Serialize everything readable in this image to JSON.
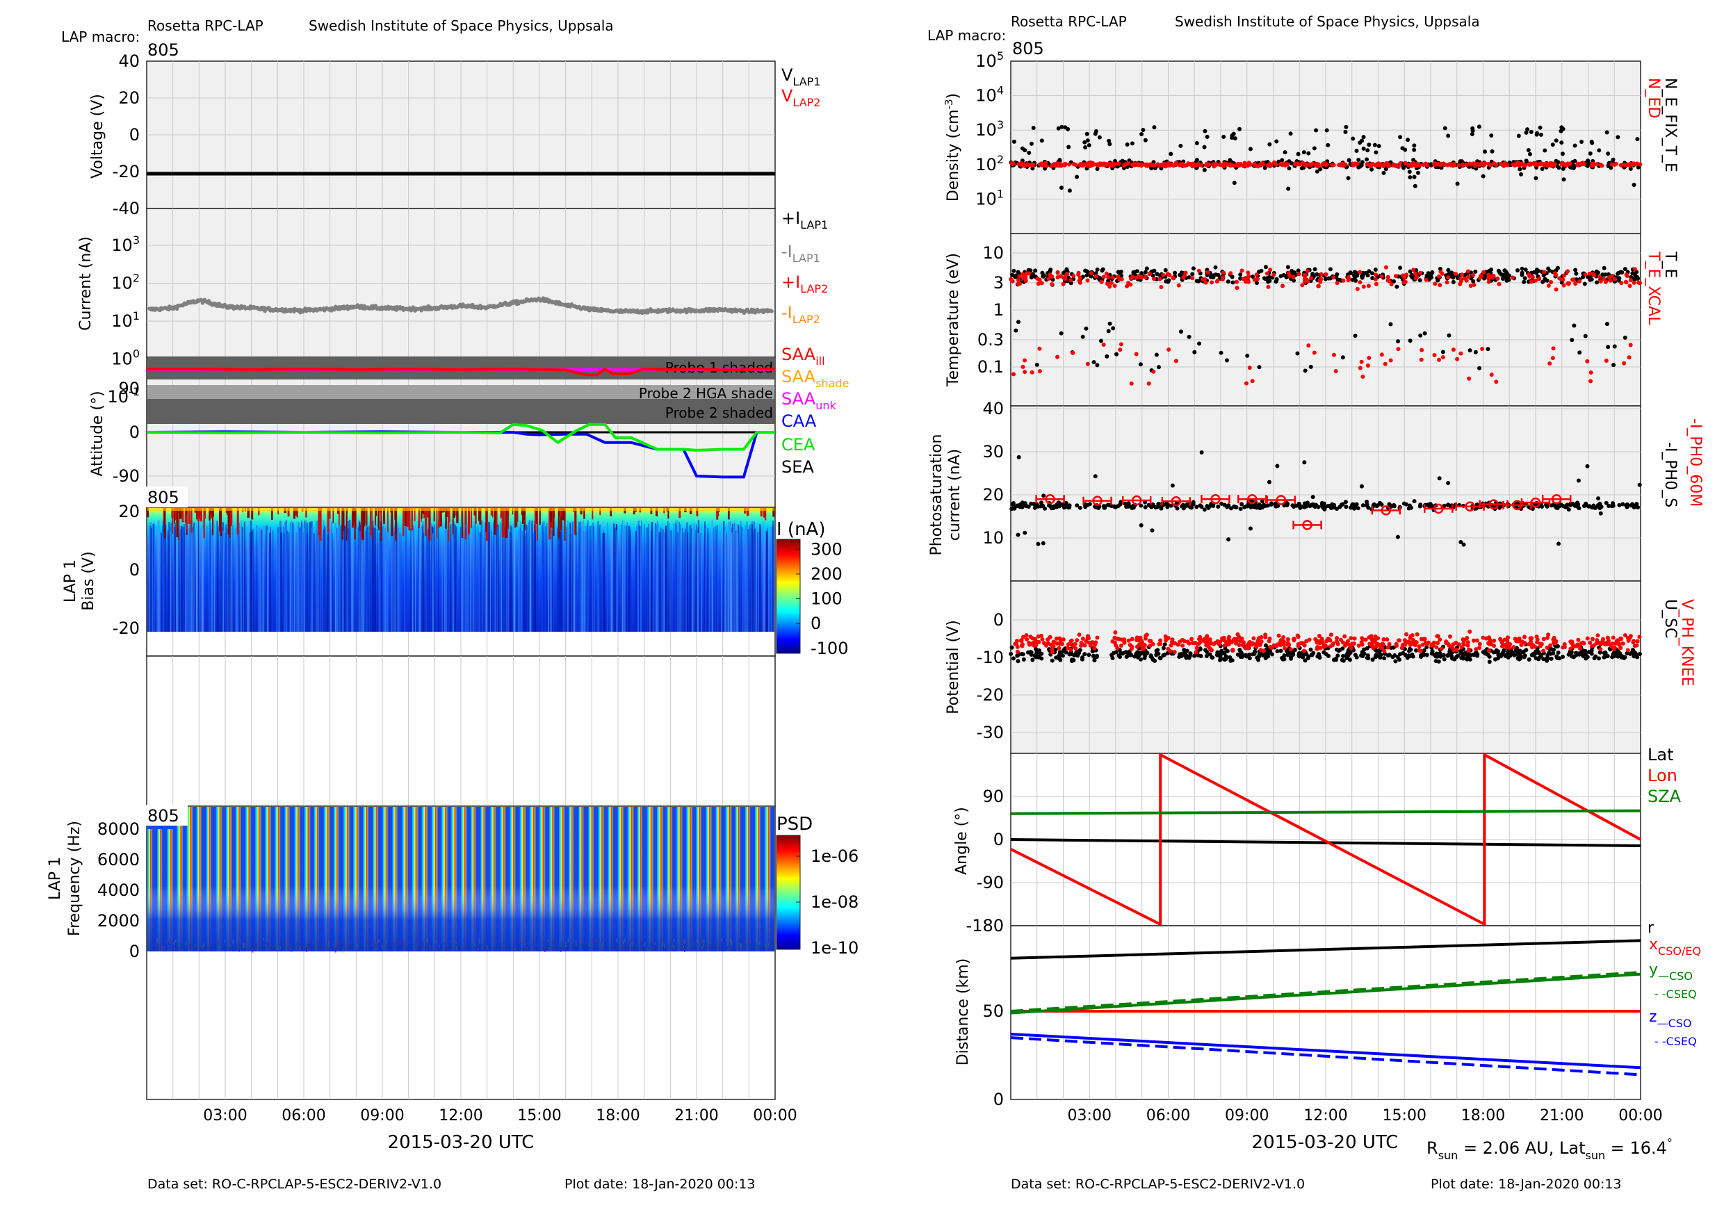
{
  "left": {
    "header": {
      "institute_name": "Rosetta RPC-LAP",
      "institute_location": "Swedish Institute of Space Physics, Uppsala",
      "macro_label": "LAP macro:",
      "macro_value": "805"
    },
    "xaxis": {
      "ticks": [
        "03:00",
        "06:00",
        "09:00",
        "12:00",
        "15:00",
        "18:00",
        "21:00",
        "00:00"
      ],
      "label": "2015-03-20 UTC"
    },
    "footer": {
      "dataset": "Data set: RO-C-RPCLAP-5-ESC2-DERIV2-V1.0",
      "plotdate": "Plot date: 18-Jan-2020 00:13"
    }
  },
  "right": {
    "header": {
      "institute_name": "Rosetta RPC-LAP",
      "institute_location": "Swedish Institute of Space Physics, Uppsala",
      "macro_label": "LAP macro:",
      "macro_value": "805"
    },
    "xaxis": {
      "ticks": [
        "03:00",
        "06:00",
        "09:00",
        "12:00",
        "15:00",
        "18:00",
        "21:00",
        "00:00"
      ],
      "label": "2015-03-20 UTC"
    },
    "footer": {
      "dataset": "Data set: RO-C-RPCLAP-5-ESC2-DERIV2-V1.0",
      "plotdate": "Plot date: 18-Jan-2020 00:13"
    },
    "rsun": "R",
    "rsun_sub": "sun",
    "rsun_value": " = 2.06 AU, Lat",
    "lat_sub": "sun",
    "lat_value": " = 16.4",
    "deg": "°"
  },
  "chart_data": [
    {
      "id": "voltage",
      "type": "line",
      "ylabel": "Voltage (V)",
      "yticks": [
        "40",
        "20",
        "0",
        "-20",
        "-40"
      ],
      "ylim": [
        -40,
        40
      ],
      "series": [
        {
          "name": "V",
          "sub": "LAP1",
          "color": "#000000",
          "x": [
            0,
            24
          ],
          "y": [
            -20,
            -20
          ]
        },
        {
          "name": "V",
          "sub": "LAP2",
          "color": "#ff0000",
          "x": [],
          "y": []
        }
      ]
    },
    {
      "id": "current",
      "type": "scatter",
      "ylabel": "Current (nA)",
      "yscale": "log",
      "yticks": [
        "10^3",
        "10^2",
        "10^1",
        "10^0",
        "10^-1"
      ],
      "series": [
        {
          "name": "+I",
          "sub": "LAP1",
          "color": "#000000"
        },
        {
          "name": "-I",
          "sub": "LAP1",
          "color": "#808080",
          "x": [
            0,
            1,
            2,
            3,
            4,
            5,
            6,
            7,
            8,
            9,
            10,
            11,
            12,
            13,
            14,
            15,
            16,
            17,
            18,
            19,
            20,
            21,
            22,
            23,
            24
          ],
          "y": [
            20,
            22,
            35,
            24,
            22,
            20,
            19,
            21,
            24,
            22,
            21,
            22,
            25,
            23,
            30,
            38,
            26,
            20,
            18,
            18,
            19,
            19,
            20,
            18,
            19
          ]
        },
        {
          "name": "+I",
          "sub": "LAP2",
          "color": "#ff0000"
        },
        {
          "name": "-I",
          "sub": "LAP2",
          "color": "#ff8c00"
        }
      ]
    },
    {
      "id": "attitude",
      "type": "line",
      "ylabel": "Attitude (°)",
      "yticks": [
        "90",
        "0",
        "-90"
      ],
      "shades": [
        "Probe 1 shaded",
        "Probe 2 HGA shade",
        "Probe 2 shaded"
      ],
      "series": [
        {
          "name": "SAA",
          "sub": "ill",
          "color": "#ff0000",
          "x": [
            0,
            2,
            4,
            6,
            8,
            10,
            12,
            14,
            16,
            16.8,
            17.2,
            17.5,
            17.8,
            18.4,
            19,
            20,
            21,
            22,
            22.8,
            23.3,
            24
          ],
          "y": [
            130,
            130,
            129,
            130,
            129,
            130,
            129,
            130,
            128,
            118,
            118,
            130,
            120,
            120,
            130,
            129,
            130,
            128,
            128,
            130,
            130
          ]
        },
        {
          "name": "SAA",
          "sub": "shade",
          "color": "#ffa500"
        },
        {
          "name": "SAA",
          "sub": "unk",
          "color": "#ff00ff",
          "x": [
            0,
            24
          ],
          "y": [
            130,
            130
          ]
        },
        {
          "name": "CAA",
          "color": "#0000ff",
          "x": [
            0,
            3,
            6,
            9,
            12,
            13.3,
            14,
            14.5,
            15,
            16,
            16.8,
            17.5,
            18,
            18.5,
            19.5,
            20.5,
            21,
            22,
            22.8,
            23.3,
            24
          ],
          "y": [
            0,
            1,
            0,
            1,
            0,
            0,
            0,
            -4,
            -5,
            -4,
            -4,
            -21,
            -21,
            -21,
            -35,
            -35,
            -90,
            -92,
            -92,
            0,
            0
          ]
        },
        {
          "name": "CEA",
          "color": "#00ee00",
          "x": [
            0,
            3,
            6,
            9,
            12,
            13.5,
            14,
            14.5,
            15.1,
            15.7,
            16.4,
            16.9,
            17.5,
            17.9,
            18.5,
            19.5,
            20.5,
            21,
            22,
            22.8,
            23.3,
            24
          ],
          "y": [
            0,
            -1,
            0,
            -1,
            0,
            -1,
            16,
            14,
            4,
            -21,
            3,
            16,
            16,
            -11,
            -11,
            -35,
            -35,
            -37,
            -35,
            -35,
            0,
            0
          ]
        },
        {
          "name": "SEA",
          "color": "#000000"
        }
      ]
    },
    {
      "id": "bias_spectrogram",
      "type": "heatmap",
      "ylabel": "LAP 1\nBias (V)",
      "yticks": [
        "20",
        "0",
        "-20"
      ],
      "colorbar_label": "I (nA)",
      "colorbar_ticks": [
        "300",
        "200",
        "100",
        "0",
        "-100"
      ],
      "panel_tag": "805"
    },
    {
      "id": "psd_spectrogram",
      "type": "heatmap",
      "ylabel": "LAP 1\nFrequency (Hz)",
      "yticks": [
        "8000",
        "6000",
        "4000",
        "2000",
        "0"
      ],
      "colorbar_label": "PSD",
      "colorbar_ticks": [
        "1e-06",
        "1e-08",
        "1e-10"
      ],
      "panel_tag": "805"
    },
    {
      "id": "density",
      "type": "scatter",
      "ylabel": "Density (cm⁻³)",
      "yscale": "log",
      "yticks": [
        "10^5",
        "10^4",
        "10^3",
        "10^2",
        "10^1"
      ],
      "series": [
        {
          "name": "N_ED",
          "color": "#ff0000"
        },
        {
          "name": "N_E_FIX_T_E",
          "color": "#000000"
        }
      ],
      "typical_value": 100
    },
    {
      "id": "temperature",
      "type": "scatter",
      "ylabel": "Temperature (eV)",
      "yscale": "log",
      "yticks": [
        "10",
        "3",
        "1",
        "0.3",
        "0.1"
      ],
      "series": [
        {
          "name": "T_E_XCAL",
          "color": "#ff0000"
        },
        {
          "name": "T_E",
          "color": "#000000"
        }
      ]
    },
    {
      "id": "photosaturation",
      "type": "scatter",
      "ylabel": "Photosaturation\ncurrent (nA)",
      "yticks": [
        "40",
        "30",
        "20",
        "10"
      ],
      "series": [
        {
          "name": "-I_PH0_60M",
          "color": "#ff0000",
          "x": [
            1.5,
            3.3,
            4.8,
            6.3,
            7.8,
            9.2,
            10.3,
            11.3,
            14.3,
            16.3,
            17.5,
            18.4,
            19.3,
            20,
            20.8
          ],
          "y": [
            19,
            18.6,
            18.7,
            18.5,
            19,
            19,
            18.8,
            13,
            16.4,
            16.8,
            17.3,
            17.8,
            17.6,
            18.2,
            19
          ]
        },
        {
          "name": "-I_PH0_S",
          "color": "#000000"
        }
      ]
    },
    {
      "id": "potential",
      "type": "scatter",
      "ylabel": "Potential (V)",
      "yticks": [
        "0",
        "-10",
        "-20",
        "-30"
      ],
      "series": [
        {
          "name": "V_PH_KNEE",
          "color": "#ff0000"
        },
        {
          "name": "U_SC",
          "color": "#000000"
        }
      ]
    },
    {
      "id": "angle",
      "type": "line",
      "ylabel": "Angle (°)",
      "yticks": [
        "90",
        "0",
        "-90",
        "-180"
      ],
      "series": [
        {
          "name": "Lat",
          "color": "#000000",
          "x": [
            0,
            24
          ],
          "y": [
            0,
            -13
          ]
        },
        {
          "name": "Lon",
          "color": "#ff0000",
          "x": [
            0,
            5.7,
            5.7,
            18.05,
            18.05,
            24
          ],
          "y": [
            -20,
            -180,
            180,
            -180,
            180,
            0
          ]
        },
        {
          "name": "SZA",
          "color": "#008000",
          "x": [
            0,
            24
          ],
          "y": [
            54,
            60
          ]
        }
      ]
    },
    {
      "id": "distance",
      "type": "line",
      "ylabel": "Distance (km)",
      "yticks": [
        "50",
        "0"
      ],
      "series": [
        {
          "name": "r",
          "color": "#000000",
          "x": [
            0,
            24
          ],
          "y": [
            80,
            90
          ]
        },
        {
          "name": "x",
          "sub": "CSO/EQ",
          "color": "#ff0000",
          "x": [
            0,
            24
          ],
          "y": [
            50,
            50
          ]
        },
        {
          "name": "y",
          "sub": "CSO",
          "color": "#008000",
          "dash": false,
          "x": [
            0,
            24
          ],
          "y": [
            49,
            71
          ]
        },
        {
          "name": "y",
          "sub": "CSEQ",
          "color": "#008000",
          "dash": true,
          "x": [
            0,
            24
          ],
          "y": [
            50,
            72
          ]
        },
        {
          "name": "z",
          "sub": "CSO",
          "color": "#0000ff",
          "dash": false,
          "x": [
            0,
            24
          ],
          "y": [
            37,
            18
          ]
        },
        {
          "name": "z",
          "sub": "CSEQ",
          "color": "#0000ff",
          "dash": true,
          "x": [
            0,
            24
          ],
          "y": [
            35,
            14
          ]
        }
      ]
    }
  ]
}
